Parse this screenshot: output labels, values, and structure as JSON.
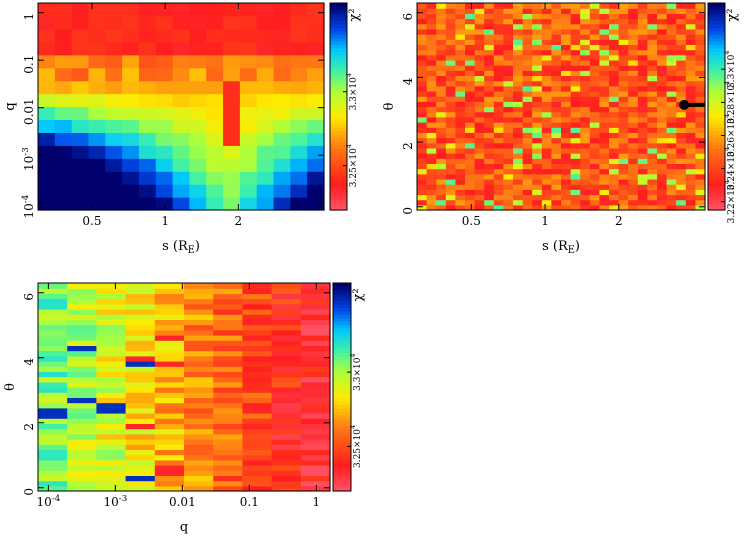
{
  "chart_data": [
    {
      "type": "heatmap",
      "xlabel": "s (R_E)",
      "ylabel": "q",
      "x_scale": "log",
      "y_scale": "log",
      "xlim": [
        0.3,
        4.5
      ],
      "ylim": [
        7e-05,
        1.6
      ],
      "x_ticks": [
        {
          "v": 0.5,
          "label": "0.5"
        },
        {
          "v": 1,
          "label": "1"
        },
        {
          "v": 2,
          "label": "2"
        }
      ],
      "y_ticks": [
        {
          "v": 1,
          "label": "1"
        },
        {
          "v": 0.1,
          "label": "0.1"
        },
        {
          "v": 0.01,
          "label": "0.01"
        },
        {
          "v": 0.001,
          "label": "10^-3"
        },
        {
          "v": 0.0001,
          "label": "10^-4"
        }
      ],
      "colorbar": {
        "label": "χ²",
        "range": [
          32200,
          33600
        ],
        "ticks": [
          {
            "v": 33000,
            "label": "3.3×10^4"
          },
          {
            "v": 32500,
            "label": "3.25×10^4"
          }
        ]
      }
    },
    {
      "type": "heatmap",
      "xlabel": "s (R_E)",
      "ylabel": "θ",
      "x_scale": "log",
      "y_scale": "linear",
      "xlim": [
        0.3,
        4.5
      ],
      "ylim": [
        -0.1,
        6.3
      ],
      "x_ticks": [
        {
          "v": 0.5,
          "label": "0.5"
        },
        {
          "v": 1,
          "label": "1"
        },
        {
          "v": 2,
          "label": "2"
        }
      ],
      "y_ticks": [
        {
          "v": 0,
          "label": "0"
        },
        {
          "v": 2,
          "label": "2"
        },
        {
          "v": 4,
          "label": "4"
        },
        {
          "v": 6,
          "label": "6"
        }
      ],
      "marker": {
        "s": 3.7,
        "theta": 3.15
      },
      "colorbar": {
        "label": "χ²",
        "range": [
          32150,
          33400
        ],
        "ticks": [
          {
            "v": 32200,
            "label": "3.22×10^4"
          },
          {
            "v": 32400,
            "label": "3.24×10^4"
          },
          {
            "v": 32600,
            "label": "3.26×10^4"
          },
          {
            "v": 32800,
            "label": "3.28×10^4"
          },
          {
            "v": 33000,
            "label": "3.3×10^4"
          }
        ]
      }
    },
    {
      "type": "heatmap",
      "xlabel": "q",
      "ylabel": "θ",
      "x_scale": "log",
      "y_scale": "linear",
      "xlim": [
        7e-05,
        1.6
      ],
      "ylim": [
        -0.1,
        6.3
      ],
      "x_ticks": [
        {
          "v": 0.0001,
          "label": "10^-4"
        },
        {
          "v": 0.001,
          "label": "10^-3"
        },
        {
          "v": 0.01,
          "label": "0.01"
        },
        {
          "v": 0.1,
          "label": "0.1"
        },
        {
          "v": 1,
          "label": "1"
        }
      ],
      "y_ticks": [
        {
          "v": 0,
          "label": "0"
        },
        {
          "v": 2,
          "label": "2"
        },
        {
          "v": 4,
          "label": "4"
        },
        {
          "v": 6,
          "label": "6"
        }
      ],
      "colorbar": {
        "label": "χ²",
        "range": [
          32200,
          33600
        ],
        "ticks": [
          {
            "v": 33000,
            "label": "3.3×10^4"
          },
          {
            "v": 32500,
            "label": "3.25×10^4"
          }
        ]
      }
    }
  ]
}
